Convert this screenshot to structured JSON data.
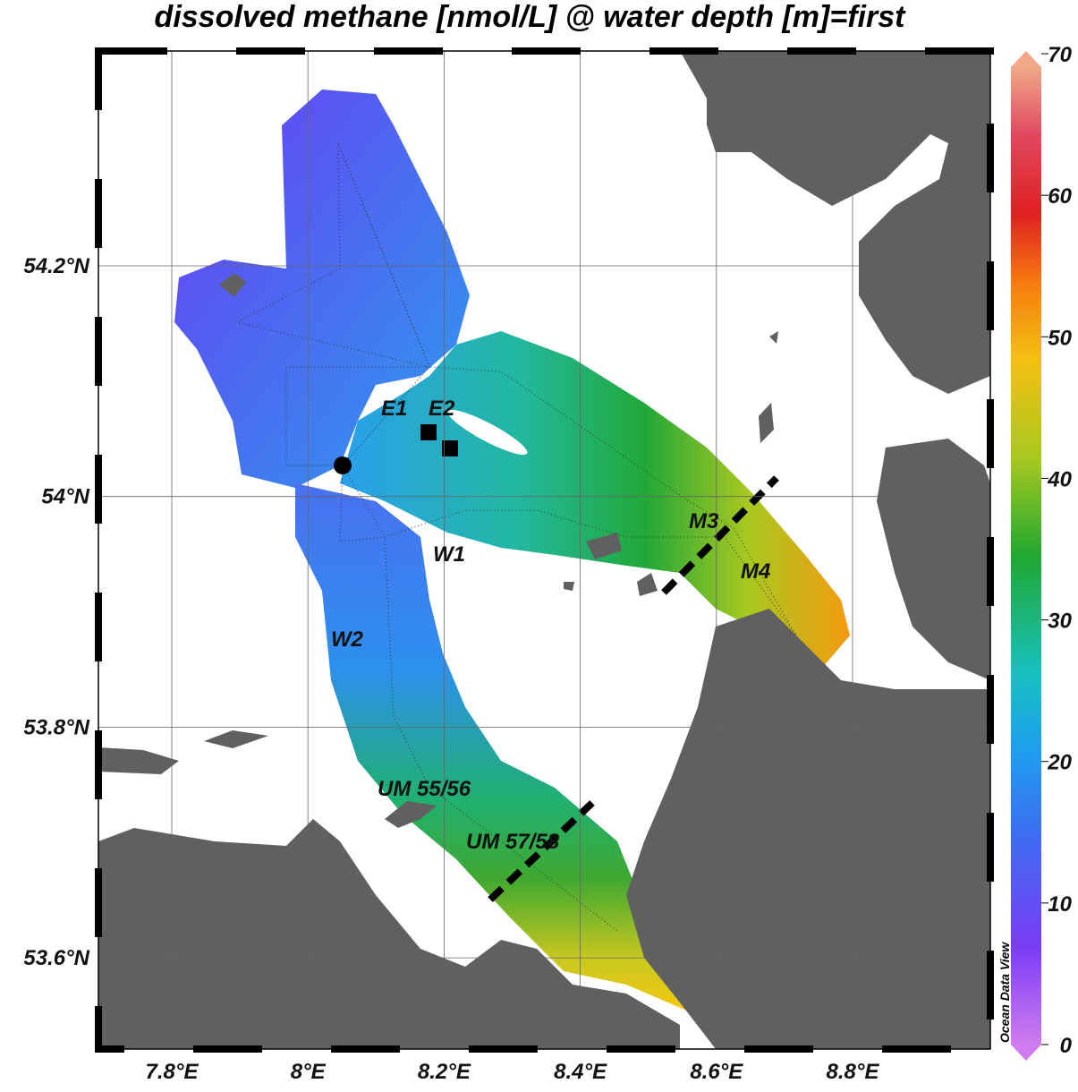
{
  "title": "dissolved methane [nmol/L] @ water depth [m]=first",
  "map": {
    "lon_ticks": [
      "7.8°E",
      "8°E",
      "8.2°E",
      "8.4°E",
      "8.6°E",
      "8.8°E"
    ],
    "lat_ticks": [
      "54.2°N",
      "54°N",
      "53.8°N",
      "53.6°N"
    ],
    "labels": [
      "E1",
      "E2",
      "W1",
      "W2",
      "M3",
      "M4",
      "UM 55/56",
      "UM 57/58"
    ],
    "watermark": "Ocean Data View"
  },
  "colorbar": {
    "ticks": [
      0,
      10,
      20,
      30,
      40,
      50,
      60,
      70
    ]
  }
}
